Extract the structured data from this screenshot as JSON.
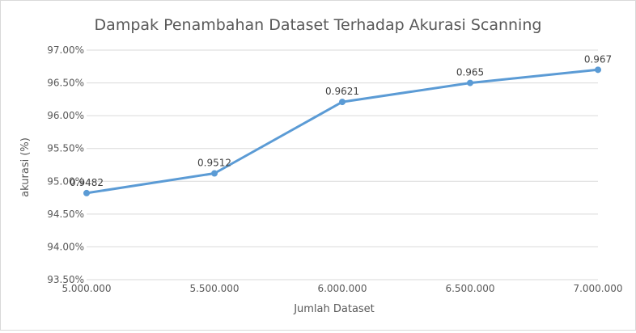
{
  "chart_data": {
    "type": "line",
    "title": "Dampak Penambahan Dataset Terhadap Akurasi Scanning",
    "xlabel": "Jumlah Dataset",
    "ylabel": "akurasi (%)",
    "x": [
      5000000,
      5500000,
      6000000,
      6500000,
      7000000
    ],
    "x_tick_labels": [
      "5.000.000",
      "5.500.000",
      "6.000.000",
      "6.500.000",
      "7.000.000"
    ],
    "series": [
      {
        "values": [
          0.9482,
          0.9512,
          0.9621,
          0.965,
          0.967
        ],
        "data_labels": [
          "0.9482",
          "0.9512",
          "0.9621",
          "0.965",
          "0.967"
        ],
        "color": "#5b9bd5"
      }
    ],
    "ylim": [
      0.935,
      0.97
    ],
    "y_ticks": [
      0.935,
      0.94,
      0.945,
      0.95,
      0.955,
      0.96,
      0.965,
      0.97
    ],
    "y_tick_labels": [
      "93.50%",
      "94.00%",
      "94.50%",
      "95.00%",
      "95.50%",
      "96.00%",
      "96.50%",
      "97.00%"
    ],
    "grid": true,
    "legend": "none"
  }
}
